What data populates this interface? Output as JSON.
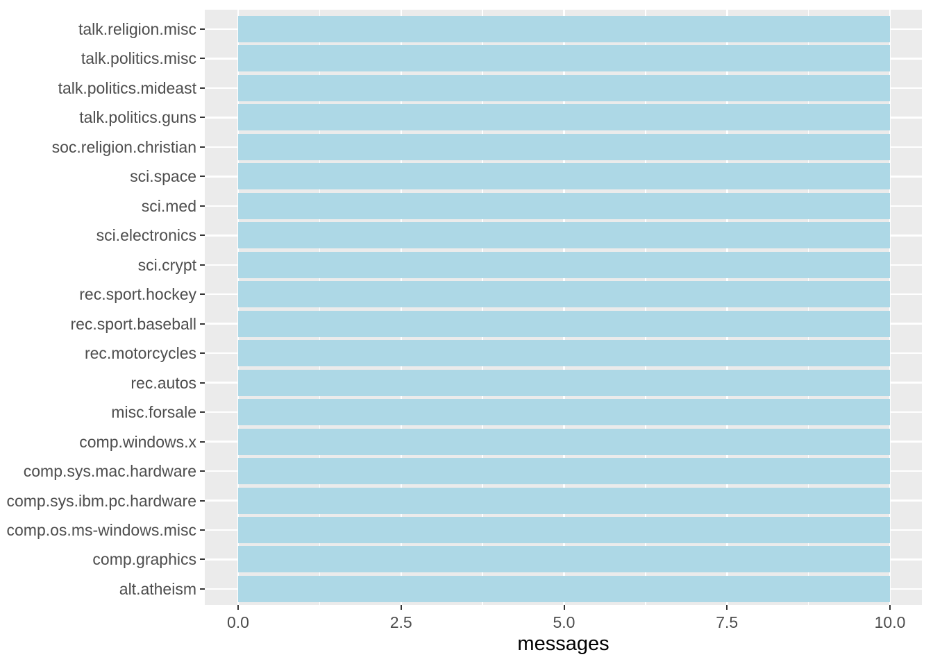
{
  "chart_data": {
    "type": "bar",
    "orientation": "horizontal",
    "title": "",
    "xlabel": "messages",
    "ylabel": "",
    "categories": [
      "talk.religion.misc",
      "talk.politics.misc",
      "talk.politics.mideast",
      "talk.politics.guns",
      "soc.religion.christian",
      "sci.space",
      "sci.med",
      "sci.electronics",
      "sci.crypt",
      "rec.sport.hockey",
      "rec.sport.baseball",
      "rec.motorcycles",
      "rec.autos",
      "misc.forsale",
      "comp.windows.x",
      "comp.sys.mac.hardware",
      "comp.sys.ibm.pc.hardware",
      "comp.os.ms-windows.misc",
      "comp.graphics",
      "alt.atheism"
    ],
    "values": [
      10,
      10,
      10,
      10,
      10,
      10,
      10,
      10,
      10,
      10,
      10,
      10,
      10,
      10,
      10,
      10,
      10,
      10,
      10,
      10
    ],
    "xlim": [
      0,
      10
    ],
    "x_ticks": [
      0.0,
      2.5,
      5.0,
      7.5,
      10.0
    ],
    "x_tick_labels": [
      "0.0",
      "2.5",
      "5.0",
      "7.5",
      "10.0"
    ],
    "x_minor_ticks": [
      1.25,
      3.75,
      6.25,
      8.75
    ],
    "legend_position": "none",
    "grid": true,
    "colors": {
      "bar_fill": "#ADD8E6",
      "panel_background": "#EBEBEB",
      "grid_line": "#FFFFFF",
      "tick_mark": "#333333",
      "tick_label": "#4D4D4D",
      "axis_title": "#000000",
      "page_background": "#FFFFFF"
    }
  }
}
